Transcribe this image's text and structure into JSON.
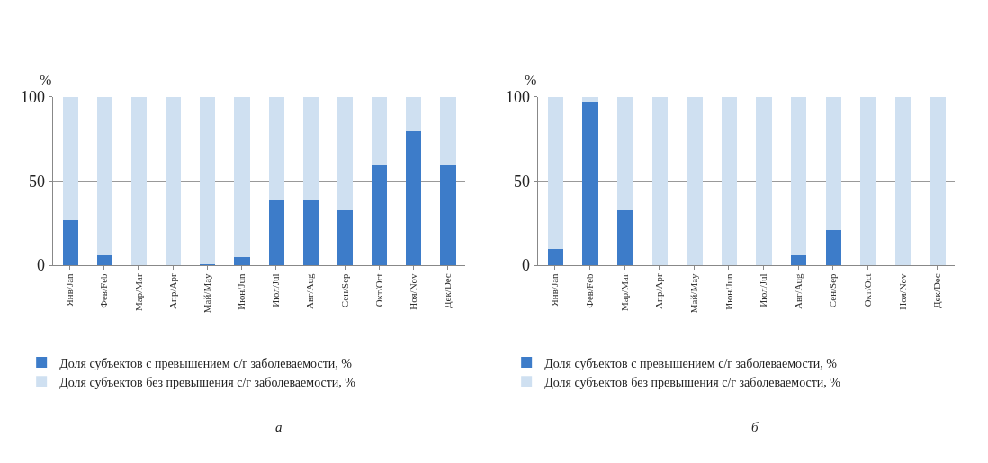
{
  "chart_data": [
    {
      "type": "bar",
      "stacked": true,
      "ylabel": "%",
      "categories": [
        "Янв/Jan",
        "Фев/Feb",
        "Мар/Mar",
        "Апр/Apr",
        "Май/May",
        "Июн/Jun",
        "Июл/Jul",
        "Авг/Aug",
        "Сен/Sep",
        "Окт/Oct",
        "Ноя/Nov",
        "Дек/Dec"
      ],
      "series": [
        {
          "name": "Доля субъектов с превышением с/г заболеваемости, %",
          "color": "#3d7cc9",
          "values": [
            27,
            6,
            0,
            0,
            1,
            5,
            39,
            39,
            33,
            60,
            80,
            60
          ]
        },
        {
          "name": "Доля субъектов без превышения с/г заболеваемости, %",
          "color": "#cfe0f1",
          "values": [
            73,
            94,
            100,
            100,
            99,
            95,
            61,
            61,
            67,
            40,
            20,
            40
          ]
        }
      ],
      "ylim": [
        0,
        100
      ],
      "yticks": [
        0,
        50,
        100
      ],
      "grid": "y",
      "legend": "bottom",
      "annotations": [
        "а"
      ]
    },
    {
      "type": "bar",
      "stacked": true,
      "ylabel": "%",
      "categories": [
        "Янв/Jan",
        "Фев/Feb",
        "Мар/Mar",
        "Апр/Apr",
        "Май/May",
        "Июн/Jun",
        "Июл/Jul",
        "Авг/Aug",
        "Сен/Sep",
        "Окт/Oct",
        "Ноя/Nov",
        "Дек/Dec"
      ],
      "series": [
        {
          "name": "Доля субъектов с превышением с/г заболеваемости, %",
          "color": "#3d7cc9",
          "values": [
            10,
            97,
            33,
            0,
            0,
            0,
            0,
            6,
            21,
            0,
            0,
            0
          ]
        },
        {
          "name": "Доля субъектов без превышения с/г заболеваемости, %",
          "color": "#cfe0f1",
          "values": [
            90,
            3,
            67,
            100,
            100,
            100,
            100,
            94,
            79,
            100,
            100,
            100
          ]
        }
      ],
      "ylim": [
        0,
        100
      ],
      "yticks": [
        0,
        50,
        100
      ],
      "grid": "y",
      "legend": "bottom",
      "annotations": [
        "б"
      ]
    }
  ]
}
